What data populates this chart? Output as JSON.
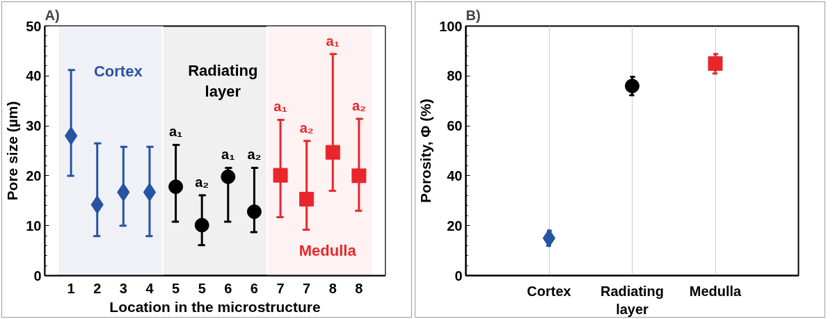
{
  "chart_data": [
    {
      "type": "scatter",
      "title": "A)",
      "xlabel": "Location in the microstructure",
      "ylabel": "Pore size (µm)",
      "categories": [
        "1",
        "2",
        "3",
        "4",
        "5",
        "5",
        "6",
        "6",
        "7",
        "7",
        "8",
        "8"
      ],
      "ylim": [
        0,
        50
      ],
      "yticks": [
        0,
        10,
        20,
        30,
        40,
        50
      ],
      "series": [
        {
          "name": "Cortex",
          "color": "#2653a3",
          "marker": "diamond",
          "values": [
            28,
            14.2,
            16.7,
            16.7,
            null,
            null,
            null,
            null,
            null,
            null,
            null,
            null
          ],
          "errors": [
            [
              20,
              41.2
            ],
            [
              7.9,
              26.5
            ],
            [
              10,
              25.8
            ],
            [
              7.9,
              25.8
            ],
            null,
            null,
            null,
            null,
            null,
            null,
            null,
            null
          ]
        },
        {
          "name": "Radiating layer",
          "color": "#000000",
          "marker": "circle",
          "values": [
            null,
            null,
            null,
            null,
            17.8,
            10.1,
            19.8,
            12.8,
            null,
            null,
            null,
            null
          ],
          "errors": [
            null,
            null,
            null,
            null,
            [
              10.8,
              26.2
            ],
            [
              6.1,
              16.1
            ],
            [
              10.8,
              21.6
            ],
            [
              8.7,
              21.6
            ],
            null,
            null,
            null,
            null
          ]
        },
        {
          "name": "Medulla",
          "color": "#e8262b",
          "marker": "square",
          "values": [
            null,
            null,
            null,
            null,
            null,
            null,
            null,
            null,
            20.1,
            15.3,
            24.7,
            20
          ],
          "errors": [
            null,
            null,
            null,
            null,
            null,
            null,
            null,
            null,
            [
              11.7,
              31.2
            ],
            [
              9.2,
              27
            ],
            [
              17,
              44.4
            ],
            [
              13,
              31.4
            ]
          ]
        }
      ],
      "bands": [
        {
          "axis": "x",
          "from": "1",
          "to": "4",
          "color": "#eff1f7"
        }
      ],
      "annotations": [
        "a₁",
        "a₂",
        "a₁",
        "a₂",
        "a₁",
        "a₂",
        "a₁",
        "a₂"
      ]
    },
    {
      "type": "scatter",
      "title": "B)",
      "ylabel": "Porosity, Φ (%)",
      "categories": [
        "Cortex",
        "Radiating layer",
        "Medulla"
      ],
      "ylim": [
        0,
        100
      ],
      "yticks": [
        0,
        20,
        40,
        60,
        80,
        100
      ],
      "series": [
        {
          "color": "#2653a3",
          "marker": "diamond",
          "values": [
            15,
            null,
            null
          ],
          "errors": [
            [
              12,
              18
            ],
            null,
            null
          ]
        },
        {
          "color": "#000000",
          "marker": "circle",
          "values": [
            null,
            76,
            null
          ],
          "errors": [
            null,
            [
              72.3,
              79.7
            ],
            null
          ]
        },
        {
          "color": "#e8262b",
          "marker": "square",
          "values": [
            null,
            null,
            85
          ],
          "errors": [
            null,
            null,
            [
              81,
              88.8
            ]
          ]
        }
      ],
      "grid": "x"
    }
  ]
}
